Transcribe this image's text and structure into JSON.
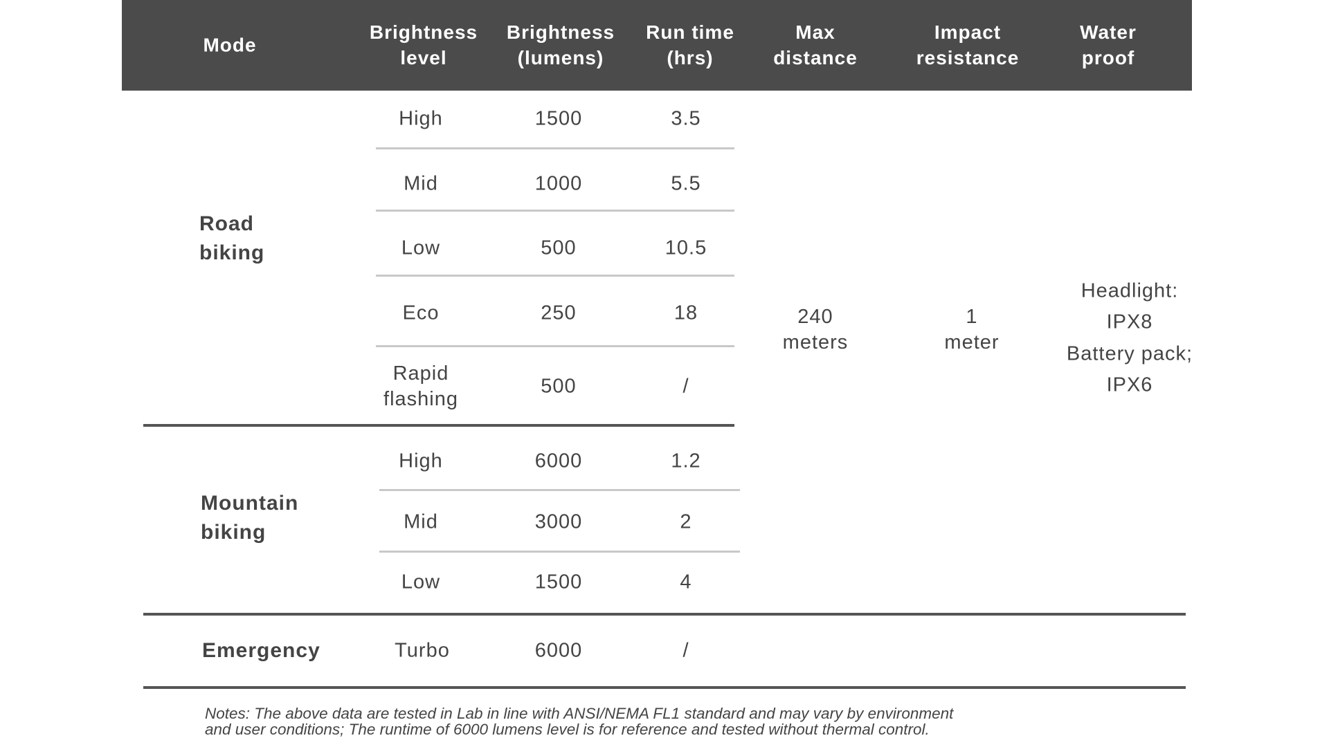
{
  "headers": [
    "Mode",
    "Brightness\nlevel",
    "Brightness\n(lumens)",
    "Run time\n(hrs)",
    "Max\ndistance",
    "Impact\nresistance",
    "Water\nproof"
  ],
  "groups": [
    {
      "mode": "Road\nbiking",
      "rows": [
        {
          "level": "High",
          "lumens": "1500",
          "runtime": "3.5"
        },
        {
          "level": "Mid",
          "lumens": "1000",
          "runtime": "5.5"
        },
        {
          "level": "Low",
          "lumens": "500",
          "runtime": "10.5"
        },
        {
          "level": "Eco",
          "lumens": "250",
          "runtime": "18"
        },
        {
          "level": "Rapid\nflashing",
          "lumens": "500",
          "runtime": "/"
        }
      ]
    },
    {
      "mode": "Mountain\nbiking",
      "rows": [
        {
          "level": "High",
          "lumens": "6000",
          "runtime": "1.2"
        },
        {
          "level": "Mid",
          "lumens": "3000",
          "runtime": "2"
        },
        {
          "level": "Low",
          "lumens": "1500",
          "runtime": "4"
        }
      ]
    },
    {
      "mode": "Emergency",
      "rows": [
        {
          "level": "Turbo",
          "lumens": "6000",
          "runtime": "/"
        }
      ]
    }
  ],
  "shared": {
    "max_distance": "240\nmeters",
    "impact_resistance": "1\nmeter",
    "waterproof": [
      "Headlight:",
      "IPX8",
      "Battery pack;",
      "IPX6"
    ]
  },
  "notes": [
    "Notes: The above data are tested in Lab in line with ANSI/NEMA FL1 standard and may vary by environment",
    "and user conditions; The runtime of 6000 lumens level is for reference and tested without thermal control."
  ],
  "colors": {
    "header_bg": "#4b4b4b",
    "text": "#444444"
  }
}
